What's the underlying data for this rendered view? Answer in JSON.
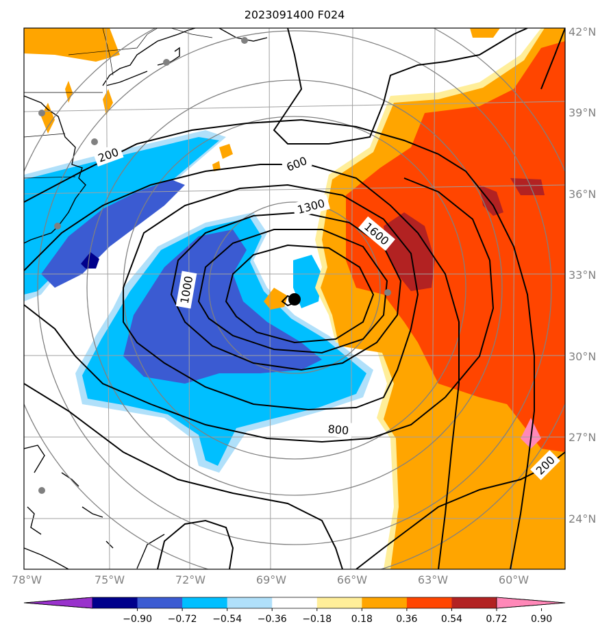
{
  "title": "2023091400 F024",
  "map": {
    "lon_range": [
      -78,
      -58
    ],
    "lat_range": [
      22,
      42
    ],
    "lon_ticks": [
      "78°W",
      "75°W",
      "72°W",
      "69°W",
      "66°W",
      "63°W",
      "60°W"
    ],
    "lat_ticks": [
      "42°N",
      "39°N",
      "36°N",
      "33°N",
      "30°N",
      "27°N",
      "24°N"
    ],
    "storm_center": {
      "lon": -68.1,
      "lat": 32.1
    },
    "contour_labels": [
      "200",
      "600",
      "1300",
      "1600",
      "1000",
      "800",
      "200"
    ]
  },
  "colorbar": {
    "ticks": [
      "−0.90",
      "−0.72",
      "−0.54",
      "−0.36",
      "−0.18",
      "0.18",
      "0.36",
      "0.54",
      "0.72",
      "0.90"
    ],
    "colors": [
      "#9932cc",
      "#00008b",
      "#3b5bd2",
      "#00bfff",
      "#b0e0fa",
      "#ffffff",
      "#ffee99",
      "#ffa500",
      "#ff4500",
      "#b22222",
      "#ff88b8"
    ]
  },
  "colors": {
    "neg_strong": "#3b5bd2",
    "neg_mid": "#00bfff",
    "neg_light": "#b0e0fa",
    "neg_darkest": "#00008b",
    "pos_light": "#ffee99",
    "pos_mid": "#ffa500",
    "pos_strong": "#ff4500",
    "pos_darkest": "#b22222",
    "gridline": "#a0a0a0",
    "range_ring": "#808080",
    "contour": "#000000",
    "station": "#808080"
  }
}
